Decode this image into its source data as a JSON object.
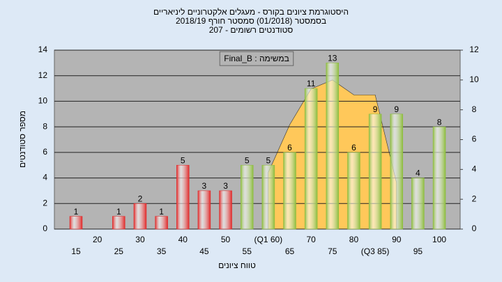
{
  "chart_data": {
    "type": "bar",
    "title": [
      "היסטוגרמת ציונים בקורס - מעגלים אלקטרוניים ליניאריים",
      "בסמסטר  (01/2018)  סמסטר חורף 2018/19",
      "סטודנטים רשומים - 207"
    ],
    "annotation": "Final_B : במשימה",
    "ylabel": "מספר סטודנטים",
    "xlabel": "טווח ציונים",
    "categories": [
      "15",
      "20",
      "25",
      "30",
      "35",
      "40",
      "45",
      "50",
      "55",
      "(Q1 60)",
      "65",
      "70",
      "75",
      "80",
      "(Q3 85)",
      "90",
      "95",
      "100"
    ],
    "values": [
      1,
      0,
      1,
      2,
      1,
      5,
      3,
      3,
      5,
      5,
      6,
      11,
      13,
      6,
      9,
      9,
      4,
      8
    ],
    "colors": [
      "#e02828",
      "#e02828",
      "#e02828",
      "#e02828",
      "#e02828",
      "#e02828",
      "#e02828",
      "#e02828",
      "#8cbc3c",
      "#8cbc3c",
      "#8cbc3c",
      "#8cbc3c",
      "#8cbc3c",
      "#8cbc3c",
      "#8cbc3c",
      "#8cbc3c",
      "#8cbc3c",
      "#8cbc3c"
    ],
    "area": {
      "axis": "y2",
      "color": "#ffc85a",
      "values": [
        null,
        null,
        null,
        null,
        null,
        null,
        null,
        null,
        null,
        3.8,
        7,
        9.4,
        10,
        9,
        9,
        3.1,
        null,
        null
      ]
    },
    "ylim": [
      0,
      14
    ],
    "yticks": [
      0,
      2,
      4,
      6,
      8,
      10,
      12,
      14
    ],
    "y2lim": [
      0,
      12
    ],
    "y2ticks": [
      0,
      2,
      4,
      6,
      8,
      10,
      12
    ],
    "grid": true
  }
}
